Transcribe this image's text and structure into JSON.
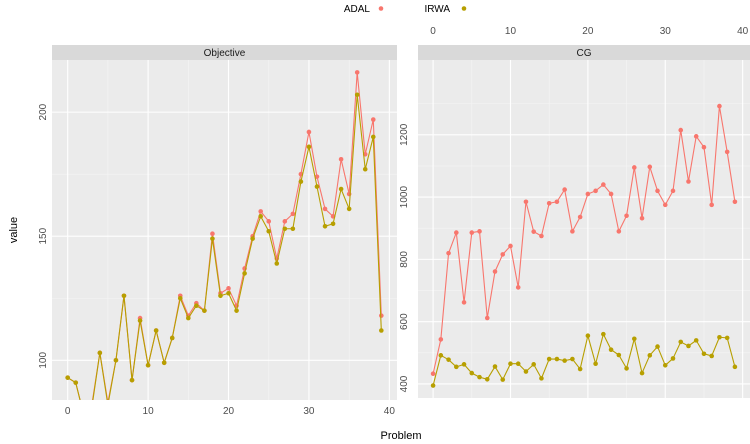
{
  "chart_data": {
    "type": "line",
    "xlabel": "Problem",
    "ylabel": "value",
    "legend": {
      "position": "top",
      "entries": [
        {
          "label": "ADAL",
          "color": "#F8766D"
        },
        {
          "label": "IRWA",
          "color": "#B79F00"
        }
      ]
    },
    "grid": true,
    "panels": [
      {
        "title": "Objective",
        "x_axis_position": "bottom",
        "y_axis_position": "left",
        "xlim": [
          -1.95,
          40.95
        ],
        "ylim": [
          84,
          221
        ],
        "x_ticks": [
          0,
          10,
          20,
          30,
          40
        ],
        "x_tick_labels": [
          "0",
          "10",
          "20",
          "30",
          "40"
        ],
        "y_ticks": [
          100,
          150,
          200
        ],
        "y_tick_labels": [
          "100",
          "150",
          "200"
        ],
        "x": [
          0,
          1,
          2,
          3,
          4,
          5,
          6,
          7,
          8,
          9,
          10,
          11,
          12,
          13,
          14,
          15,
          16,
          17,
          18,
          19,
          20,
          21,
          22,
          23,
          24,
          25,
          26,
          27,
          28,
          29,
          30,
          31,
          32,
          33,
          34,
          35,
          36,
          37,
          38,
          39
        ],
        "series": [
          {
            "name": "ADAL",
            "color": "#F8766D",
            "values": [
              93,
              91,
              78,
              82,
              103,
              83,
              100,
              126,
              92,
              117,
              98,
              112,
              99,
              109,
              126,
              118,
              123,
              120,
              151,
              127,
              129,
              122,
              137,
              150,
              160,
              156,
              141,
              156,
              159,
              175,
              192,
              174,
              161,
              158,
              181,
              167,
              216,
              183,
              197,
              118
            ]
          },
          {
            "name": "IRWA",
            "color": "#B79F00",
            "values": [
              93,
              91,
              78,
              81,
              103,
              82,
              100,
              126,
              92,
              116,
              98,
              112,
              99,
              109,
              125,
              117,
              122,
              120,
              149,
              126,
              127,
              120,
              135,
              149,
              158,
              152,
              139,
              153,
              153,
              172,
              186,
              170,
              154,
              155,
              169,
              161,
              207,
              177,
              190,
              112
            ]
          }
        ]
      },
      {
        "title": "CG",
        "x_axis_position": "top",
        "y_axis_position": "left",
        "xlim": [
          -1.95,
          40.95
        ],
        "ylim": [
          355,
          1440
        ],
        "x_ticks": [
          0,
          10,
          20,
          30,
          40
        ],
        "x_tick_labels": [
          "0",
          "10",
          "20",
          "30",
          "40"
        ],
        "y_ticks": [
          400,
          600,
          800,
          1000,
          1200
        ],
        "y_tick_labels": [
          "400",
          "600",
          "800",
          "1000",
          "1200"
        ],
        "x": [
          0,
          1,
          2,
          3,
          4,
          5,
          6,
          7,
          8,
          9,
          10,
          11,
          12,
          13,
          14,
          15,
          16,
          17,
          18,
          19,
          20,
          21,
          22,
          23,
          24,
          25,
          26,
          27,
          28,
          29,
          30,
          31,
          32,
          33,
          34,
          35,
          36,
          37,
          38,
          39
        ],
        "series": [
          {
            "name": "ADAL",
            "color": "#F8766D",
            "values": [
              433,
              543,
              820,
              886,
              662,
              886,
              890,
              612,
              761,
              816,
              843,
              710,
              985,
              889,
              875,
              980,
              985,
              1024,
              890,
              936,
              1010,
              1020,
              1040,
              1010,
              890,
              940,
              1095,
              932,
              1097,
              1020,
              975,
              1020,
              1215,
              1050,
              1195,
              1160,
              975,
              1292,
              1145,
              985
            ]
          },
          {
            "name": "IRWA",
            "color": "#B79F00",
            "values": [
              395,
              492,
              478,
              455,
              463,
              435,
              422,
              415,
              456,
              414,
              465,
              465,
              440,
              463,
              418,
              480,
              480,
              475,
              480,
              448,
              555,
              465,
              560,
              510,
              493,
              450,
              545,
              435,
              492,
              520,
              460,
              482,
              535,
              522,
              540,
              497,
              490,
              550,
              548,
              455
            ]
          }
        ]
      }
    ]
  }
}
